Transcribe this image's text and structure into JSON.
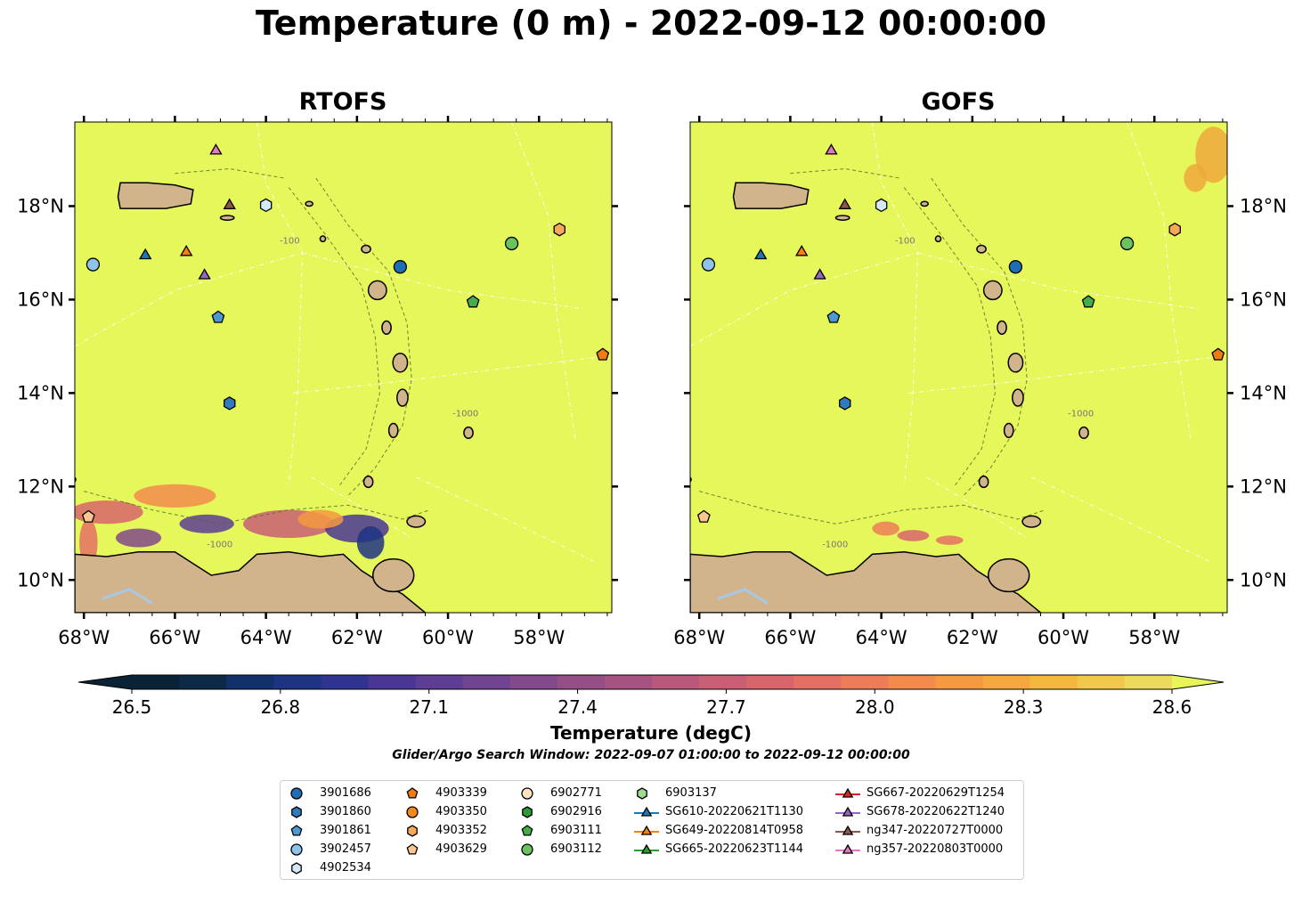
{
  "title": "Temperature (0 m) - 2022-09-12 00:00:00",
  "panels": [
    {
      "title": "RTOFS",
      "key": "rtofs"
    },
    {
      "title": "GOFS",
      "key": "gofs"
    }
  ],
  "axes": {
    "lon_ticks": [
      "68°W",
      "66°W",
      "64°W",
      "62°W",
      "60°W",
      "58°W"
    ],
    "lon_values": [
      -68,
      -66,
      -64,
      -62,
      -60,
      -58
    ],
    "lat_ticks": [
      "10°N",
      "12°N",
      "14°N",
      "16°N",
      "18°N"
    ],
    "lat_values": [
      10,
      12,
      14,
      16,
      18
    ],
    "lon_range": [
      -68.2,
      -56.4
    ],
    "lat_range": [
      9.3,
      19.8
    ]
  },
  "colorbar": {
    "label": "Temperature (degC)",
    "ticks": [
      "26.5",
      "26.8",
      "27.1",
      "27.4",
      "27.7",
      "28.0",
      "28.3",
      "28.6"
    ],
    "colors": [
      "#0a2236",
      "#0c2a48",
      "#12306a",
      "#1e3482",
      "#2f3490",
      "#4a3695",
      "#5e3d94",
      "#704490",
      "#82498b",
      "#954f86",
      "#a75381",
      "#b9587b",
      "#c95e74",
      "#d8656c",
      "#e47064",
      "#ed7d58",
      "#f28b4c",
      "#f59942",
      "#f6a83e",
      "#f5b83f",
      "#f1c84c",
      "#ecda5c"
    ],
    "extend_high_color": "#e8f55a"
  },
  "search_window": "Glider/Argo Search Window: 2022-09-07 01:00:00 to 2022-09-12 00:00:00",
  "map_colors": {
    "sea": "#e5f75a",
    "land": "#d2b48c",
    "lake": "#a8c8e6",
    "warm": "#f0a83c"
  },
  "legend": [
    {
      "label": "3901686",
      "marker": "circle",
      "color": "#1f6eb5"
    },
    {
      "label": "3901860",
      "marker": "hexagon",
      "color": "#2f7bbd"
    },
    {
      "label": "3901861",
      "marker": "pentagon",
      "color": "#4c98d3"
    },
    {
      "label": "3902457",
      "marker": "circle",
      "color": "#8ec3ea"
    },
    {
      "label": "4902534",
      "marker": "hexagon",
      "color": "#d4e9f7"
    },
    {
      "label": "4903339",
      "marker": "pentagon",
      "color": "#f07b10"
    },
    {
      "label": "4903350",
      "marker": "circle",
      "color": "#f5891e"
    },
    {
      "label": "4903352",
      "marker": "hexagon",
      "color": "#f8a857"
    },
    {
      "label": "4903629",
      "marker": "pentagon",
      "color": "#fcc690"
    },
    {
      "label": "6902771",
      "marker": "circle",
      "color": "#fde2c4"
    },
    {
      "label": "6902916",
      "marker": "hexagon",
      "color": "#2c9a36"
    },
    {
      "label": "6903111",
      "marker": "pentagon",
      "color": "#44ad4a"
    },
    {
      "label": "6903112",
      "marker": "circle",
      "color": "#6cc35e"
    },
    {
      "label": "6903137",
      "marker": "hexagon",
      "color": "#9fdc91"
    },
    {
      "label": "SG610-20220621T1130",
      "marker": "triangle-line",
      "color": "#1f77b4"
    },
    {
      "label": "SG649-20220814T0958",
      "marker": "triangle-line",
      "color": "#ff7f0e"
    },
    {
      "label": "SG665-20220623T1144",
      "marker": "triangle-line",
      "color": "#2ca02c"
    },
    {
      "label": "SG667-20220629T1254",
      "marker": "triangle-line",
      "color": "#d62728"
    },
    {
      "label": "SG678-20220622T1240",
      "marker": "triangle-line",
      "color": "#9467bd"
    },
    {
      "label": "ng347-20220727T0000",
      "marker": "triangle-line",
      "color": "#8c564b"
    },
    {
      "label": "ng357-20220803T0000",
      "marker": "triangle-line",
      "color": "#e377c2"
    }
  ],
  "observations": [
    {
      "id": "3901686",
      "lon": -61.05,
      "lat": 16.7
    },
    {
      "id": "3901860",
      "lon": -64.8,
      "lat": 13.78
    },
    {
      "id": "3901861",
      "lon": -65.05,
      "lat": 15.62
    },
    {
      "id": "3902457",
      "lon": -67.8,
      "lat": 16.75
    },
    {
      "id": "4902534",
      "lon": -64.0,
      "lat": 18.02
    },
    {
      "id": "4903339",
      "lon": -56.6,
      "lat": 14.82
    },
    {
      "id": "4903352",
      "lon": -57.55,
      "lat": 17.5
    },
    {
      "id": "4903629",
      "lon": -67.9,
      "lat": 11.35
    },
    {
      "id": "6903111",
      "lon": -59.45,
      "lat": 15.95
    },
    {
      "id": "6903112",
      "lon": -58.6,
      "lat": 17.2
    },
    {
      "id": "SG610-20220621T1130",
      "lon": -66.65,
      "lat": 16.98
    },
    {
      "id": "SG649-20220814T0958",
      "lon": -65.75,
      "lat": 17.05
    },
    {
      "id": "SG678-20220622T1240",
      "lon": -65.35,
      "lat": 16.55
    },
    {
      "id": "ng347-20220727T0000",
      "lon": -64.8,
      "lat": 18.05
    },
    {
      "id": "ng357-20220803T0000",
      "lon": -65.1,
      "lat": 19.22
    }
  ],
  "contour_labels": [
    "-100",
    "-1000"
  ]
}
